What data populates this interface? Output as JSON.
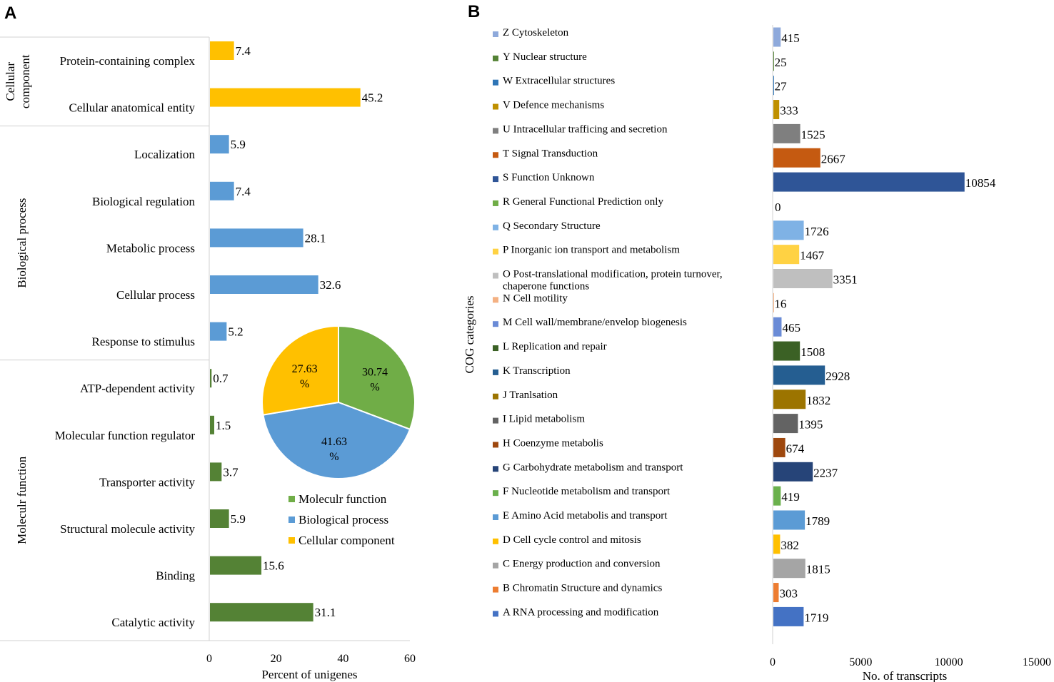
{
  "panels": {
    "a": {
      "letter": "A"
    },
    "b": {
      "letter": "B"
    }
  },
  "chart_data": [
    {
      "type": "bar",
      "orientation": "horizontal",
      "xlabel": "Percent of unigenes",
      "xlim": [
        0,
        60
      ],
      "xticks": [
        0,
        20,
        40,
        60
      ],
      "groups": [
        {
          "name": "Cellular component",
          "label_lines": [
            "Cellular",
            "component"
          ],
          "color": "#FFC000",
          "categories": [
            "Protein-containing complex",
            "Cellular anatomical entity"
          ],
          "values": [
            7.4,
            45.2
          ],
          "value_labels": [
            "7.4",
            "45.2"
          ]
        },
        {
          "name": "Biological process",
          "label_lines": [
            "Biological process"
          ],
          "color": "#5B9BD5",
          "categories": [
            "Localization",
            "Biological regulation",
            "Metabolic process",
            "Cellular process",
            "Response to stimulus"
          ],
          "values": [
            5.9,
            7.4,
            28.1,
            32.6,
            5.2
          ],
          "value_labels": [
            "5.9",
            "7.4",
            "28.1",
            "32.6",
            "5.2"
          ]
        },
        {
          "name": "Moleculr function",
          "label_lines": [
            "Moleculr function"
          ],
          "color": "#548235",
          "categories": [
            "ATP-dependent activity",
            "Molecular function regulator",
            "Transporter activity",
            "Structural molecule activity",
            "Binding",
            "Catalytic activity"
          ],
          "values": [
            0.7,
            1.5,
            3.7,
            5.9,
            15.6,
            31.1
          ],
          "value_labels": [
            "0.7",
            "1.5",
            "3.7",
            "5.9",
            "15.6",
            "31.1"
          ]
        }
      ]
    },
    {
      "type": "pie",
      "slices": [
        {
          "name": "Moleculr function",
          "value": 30.74,
          "label_lines": [
            "30.74",
            "%"
          ],
          "color": "#70AD47"
        },
        {
          "name": "Biological process",
          "value": 41.63,
          "label_lines": [
            "41.63",
            "%"
          ],
          "color": "#5B9BD5"
        },
        {
          "name": "Cellular component",
          "value": 27.63,
          "label_lines": [
            "27.63",
            "%"
          ],
          "color": "#FFC000"
        }
      ],
      "legend": [
        "Moleculr function",
        "Biological process",
        "Cellular component"
      ]
    },
    {
      "type": "bar",
      "orientation": "horizontal",
      "ylabel": "COG categories",
      "xlabel": "No. of transcripts",
      "xlim": [
        0,
        15000
      ],
      "xticks": [
        0,
        5000,
        10000,
        15000
      ],
      "categories": [
        {
          "lines": [
            "Z Cytoskeleton"
          ],
          "value": 415,
          "color": "#8EA9DB"
        },
        {
          "lines": [
            "Y Nuclear structure"
          ],
          "value": 25,
          "color": "#548235"
        },
        {
          "lines": [
            "W Extracellular structures"
          ],
          "value": 27,
          "color": "#2E75B6"
        },
        {
          "lines": [
            "V Defence mechanisms"
          ],
          "value": 333,
          "color": "#BF9000"
        },
        {
          "lines": [
            "U Intracellular trafficing and secretion"
          ],
          "value": 1525,
          "color": "#7F7F7F"
        },
        {
          "lines": [
            "T Signal Transduction"
          ],
          "value": 2667,
          "color": "#C55A11"
        },
        {
          "lines": [
            "S Function Unknown"
          ],
          "value": 10854,
          "color": "#2F5597"
        },
        {
          "lines": [
            "R General Functional Prediction only"
          ],
          "value": 0,
          "color": "#70AD47"
        },
        {
          "lines": [
            "Q Secondary Structure"
          ],
          "value": 1726,
          "color": "#7FB2E5"
        },
        {
          "lines": [
            "P Inorganic ion transport and metabolism"
          ],
          "value": 1467,
          "color": "#FFD243"
        },
        {
          "lines": [
            "O Post-translational modification, protein turnover,",
            "chaperone functions"
          ],
          "value": 3351,
          "color": "#BFBFBF"
        },
        {
          "lines": [
            "N Cell motility"
          ],
          "value": 16,
          "color": "#F4B183"
        },
        {
          "lines": [
            "M Cell wall/membrane/envelop biogenesis"
          ],
          "value": 465,
          "color": "#6A8BD6"
        },
        {
          "lines": [
            "L Replication and repair"
          ],
          "value": 1508,
          "color": "#3B6125"
        },
        {
          "lines": [
            "K Transcription"
          ],
          "value": 2928,
          "color": "#255E91"
        },
        {
          "lines": [
            "J  Tranlsation"
          ],
          "value": 1832,
          "color": "#9C7400"
        },
        {
          "lines": [
            "I Lipid metabolism"
          ],
          "value": 1395,
          "color": "#636363"
        },
        {
          "lines": [
            "H Coenzyme metabolis"
          ],
          "value": 674,
          "color": "#9E480E"
        },
        {
          "lines": [
            "G Carbohydrate metabolism and transport"
          ],
          "value": 2237,
          "color": "#264478"
        },
        {
          "lines": [
            "F Nucleotide metabolism and transport"
          ],
          "value": 419,
          "color": "#6AB04C"
        },
        {
          "lines": [
            "E Amino Acid metabolis and transport"
          ],
          "value": 1789,
          "color": "#5B9BD5"
        },
        {
          "lines": [
            "D Cell cycle control and mitosis"
          ],
          "value": 382,
          "color": "#FFC000"
        },
        {
          "lines": [
            "C Energy production and conversion"
          ],
          "value": 1815,
          "color": "#A5A5A5"
        },
        {
          "lines": [
            "B Chromatin Structure and dynamics"
          ],
          "value": 303,
          "color": "#ED7D31"
        },
        {
          "lines": [
            "A RNA processing and modification"
          ],
          "value": 1719,
          "color": "#4472C4"
        }
      ]
    }
  ]
}
